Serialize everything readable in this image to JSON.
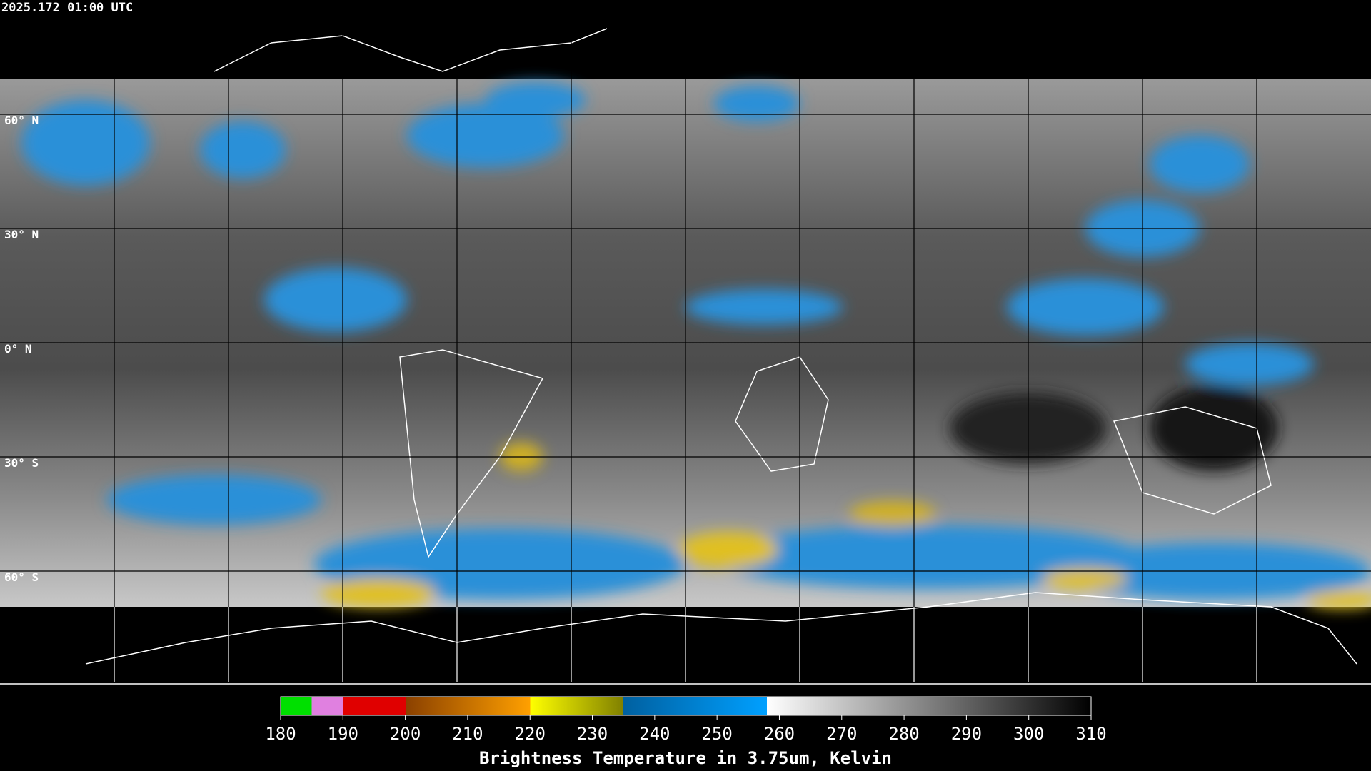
{
  "header": {
    "title": "2025.172 01:00 UTC"
  },
  "map": {
    "lat_labels": [
      "60° N",
      "30° N",
      "0° N",
      "30° S",
      "60° S"
    ]
  },
  "colorbar": {
    "ticks": [
      180,
      190,
      200,
      210,
      220,
      230,
      240,
      250,
      260,
      270,
      280,
      290,
      300,
      310
    ],
    "label": "Brightness Temperature in 3.75um, Kelvin"
  }
}
